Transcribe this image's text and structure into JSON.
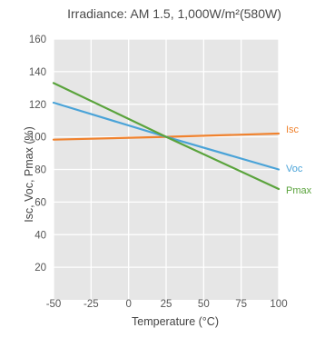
{
  "chart_data": {
    "type": "line",
    "title": "Irradiance: AM 1.5, 1,000W/m²(580W)",
    "xlabel": "Temperature (°C)",
    "ylabel": "Isc, Voc, Pmax (%)",
    "xlim": [
      -50,
      100
    ],
    "ylim": [
      0,
      160
    ],
    "xticks": [
      -50,
      -25,
      0,
      25,
      50,
      75,
      100
    ],
    "xtick_labels": [
      "-50",
      "-25",
      "0",
      "25",
      "50",
      "75",
      "100"
    ],
    "yticks": [
      20,
      40,
      60,
      80,
      100,
      120,
      140,
      160
    ],
    "ytick_labels": [
      "20",
      "40",
      "60",
      "80",
      "100",
      "120",
      "140",
      "160"
    ],
    "grid": true,
    "background": "#e6e6e6",
    "legend_position": "right, inline at line ends",
    "series": [
      {
        "name": "Isc",
        "color": "#f0822e",
        "x": [
          -50,
          25,
          100
        ],
        "y": [
          98.3,
          100,
          102
        ]
      },
      {
        "name": "Voc",
        "color": "#4aa3d8",
        "x": [
          -50,
          25,
          100
        ],
        "y": [
          121,
          100,
          80
        ]
      },
      {
        "name": "Pmax",
        "color": "#5aa33c",
        "x": [
          -50,
          25,
          100
        ],
        "y": [
          133,
          100,
          68
        ]
      }
    ]
  }
}
